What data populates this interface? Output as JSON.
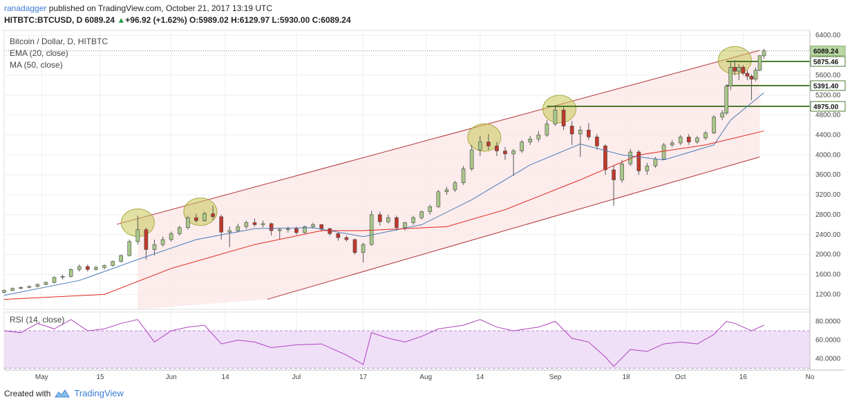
{
  "header": {
    "author": "ranadagger",
    "published": "published on TradingView.com, October 21, 2017 13:19 UTC",
    "symbol": "HITBTC:BTCUSD, D",
    "last": "6089.24",
    "change": "+96.92 (+1.62%)",
    "o_label": "O:",
    "o": "5989.02",
    "h_label": "H:",
    "h": "6129.97",
    "l_label": "L:",
    "l": "5930.00",
    "c_label": "C:",
    "c": "6089.24"
  },
  "footer": {
    "created_with": "Created with",
    "brand": "TradingView"
  },
  "colors": {
    "up": "#a9c88a",
    "down": "#c0392b",
    "ema": "#4a7ab8",
    "ma": "#e0251b",
    "channel": "#b03030",
    "level": "#4a7a2a",
    "rsi": "#b040c0",
    "ellipse": "#c8c85a"
  },
  "chart_data": {
    "type": "candlestick",
    "title": "Bitcoin / Dollar, D, HITBTC",
    "legend": [
      "EMA (20, close)",
      "MA (50, close)"
    ],
    "y_ticks": [
      1200,
      1600,
      2000,
      2400,
      2800,
      3200,
      3600,
      4000,
      4400,
      4800,
      5200,
      5600,
      6000,
      6400
    ],
    "y_tick_labels": [
      "1200.00",
      "1600.00",
      "2000.00",
      "2400.00",
      "2800.00",
      "3200.00",
      "3600.00",
      "4000.00",
      "4400.00",
      "4800.00",
      "5200.00",
      "5600.00",
      "6000.00",
      "6400.00"
    ],
    "ylim": [
      900,
      6500
    ],
    "x_ticks": [
      {
        "label": "May",
        "date": "2017-05-01"
      },
      {
        "label": "15",
        "date": "2017-05-15"
      },
      {
        "label": "Jun",
        "date": "2017-06-01"
      },
      {
        "label": "14",
        "date": "2017-06-14"
      },
      {
        "label": "Jul",
        "date": "2017-07-01"
      },
      {
        "label": "17",
        "date": "2017-07-17"
      },
      {
        "label": "Aug",
        "date": "2017-08-01"
      },
      {
        "label": "14",
        "date": "2017-08-14"
      },
      {
        "label": "Sep",
        "date": "2017-09-01"
      },
      {
        "label": "18",
        "date": "2017-09-18"
      },
      {
        "label": "Oct",
        "date": "2017-10-01"
      },
      {
        "label": "16",
        "date": "2017-10-16"
      },
      {
        "label": "No",
        "date": "2017-11-01"
      }
    ],
    "xlim": [
      "2017-04-22",
      "2017-11-01"
    ],
    "levels": [
      {
        "label": "5875.46",
        "value": 5875.46
      },
      {
        "label": "5391.40",
        "value": 5391.4
      },
      {
        "label": "4975.00",
        "value": 4975.0
      }
    ],
    "last_price": {
      "label": "6089.24",
      "value": 6089.24
    },
    "channel": {
      "upper": [
        {
          "date": "2017-05-24",
          "value": 2720
        },
        {
          "date": "2017-10-20",
          "value": 6100
        }
      ],
      "lower": [
        {
          "date": "2017-06-24",
          "value": 1100
        },
        {
          "date": "2017-10-20",
          "value": 3960
        }
      ]
    },
    "ohlc": [
      [
        "2017-04-22",
        1240,
        1300,
        1220,
        1280
      ],
      [
        "2017-04-24",
        1280,
        1340,
        1260,
        1320
      ],
      [
        "2017-04-26",
        1320,
        1360,
        1300,
        1340
      ],
      [
        "2017-04-28",
        1340,
        1380,
        1320,
        1360
      ],
      [
        "2017-04-30",
        1360,
        1420,
        1340,
        1400
      ],
      [
        "2017-05-02",
        1400,
        1460,
        1380,
        1440
      ],
      [
        "2017-05-04",
        1440,
        1560,
        1420,
        1540
      ],
      [
        "2017-05-06",
        1540,
        1600,
        1500,
        1560
      ],
      [
        "2017-05-08",
        1560,
        1720,
        1540,
        1700
      ],
      [
        "2017-05-10",
        1700,
        1800,
        1660,
        1760
      ],
      [
        "2017-05-12",
        1760,
        1800,
        1660,
        1700
      ],
      [
        "2017-05-14",
        1700,
        1780,
        1680,
        1740
      ],
      [
        "2017-05-16",
        1740,
        1800,
        1700,
        1780
      ],
      [
        "2017-05-18",
        1780,
        1880,
        1760,
        1860
      ],
      [
        "2017-05-20",
        1860,
        2000,
        1840,
        1980
      ],
      [
        "2017-05-22",
        1980,
        2300,
        1960,
        2260
      ],
      [
        "2017-05-24",
        2260,
        2780,
        2200,
        2500
      ],
      [
        "2017-05-26",
        2500,
        2540,
        1900,
        2100
      ],
      [
        "2017-05-28",
        2100,
        2300,
        1980,
        2200
      ],
      [
        "2017-05-30",
        2200,
        2360,
        2160,
        2300
      ],
      [
        "2017-06-01",
        2300,
        2460,
        2260,
        2420
      ],
      [
        "2017-06-03",
        2420,
        2580,
        2380,
        2540
      ],
      [
        "2017-06-05",
        2540,
        2780,
        2500,
        2740
      ],
      [
        "2017-06-07",
        2740,
        2820,
        2640,
        2680
      ],
      [
        "2017-06-09",
        2680,
        2860,
        2660,
        2820
      ],
      [
        "2017-06-11",
        2820,
        2980,
        2700,
        2760
      ],
      [
        "2017-06-13",
        2760,
        2800,
        2300,
        2450
      ],
      [
        "2017-06-15",
        2450,
        2560,
        2150,
        2480
      ],
      [
        "2017-06-17",
        2480,
        2620,
        2440,
        2560
      ],
      [
        "2017-06-19",
        2560,
        2680,
        2520,
        2640
      ],
      [
        "2017-06-21",
        2640,
        2720,
        2560,
        2600
      ],
      [
        "2017-06-23",
        2600,
        2680,
        2540,
        2620
      ],
      [
        "2017-06-25",
        2620,
        2640,
        2380,
        2480
      ],
      [
        "2017-06-27",
        2480,
        2540,
        2300,
        2500
      ],
      [
        "2017-06-29",
        2500,
        2560,
        2440,
        2520
      ],
      [
        "2017-07-01",
        2520,
        2560,
        2400,
        2440
      ],
      [
        "2017-07-03",
        2440,
        2580,
        2420,
        2560
      ],
      [
        "2017-07-05",
        2560,
        2640,
        2520,
        2600
      ],
      [
        "2017-07-07",
        2600,
        2620,
        2460,
        2520
      ],
      [
        "2017-07-09",
        2520,
        2540,
        2380,
        2420
      ],
      [
        "2017-07-11",
        2420,
        2440,
        2280,
        2340
      ],
      [
        "2017-07-13",
        2340,
        2380,
        2260,
        2300
      ],
      [
        "2017-07-15",
        2300,
        2320,
        2000,
        2040
      ],
      [
        "2017-07-17",
        2040,
        2240,
        1840,
        2200
      ],
      [
        "2017-07-19",
        2200,
        2880,
        2180,
        2800
      ],
      [
        "2017-07-21",
        2800,
        2860,
        2580,
        2660
      ],
      [
        "2017-07-23",
        2660,
        2800,
        2620,
        2740
      ],
      [
        "2017-07-25",
        2740,
        2780,
        2480,
        2540
      ],
      [
        "2017-07-27",
        2540,
        2660,
        2480,
        2640
      ],
      [
        "2017-07-29",
        2640,
        2780,
        2600,
        2740
      ],
      [
        "2017-07-31",
        2740,
        2880,
        2700,
        2860
      ],
      [
        "2017-08-02",
        2860,
        3000,
        2800,
        2960
      ],
      [
        "2017-08-04",
        2960,
        3300,
        2940,
        3260
      ],
      [
        "2017-08-06",
        3260,
        3360,
        3200,
        3300
      ],
      [
        "2017-08-08",
        3300,
        3480,
        3260,
        3440
      ],
      [
        "2017-08-10",
        3440,
        3780,
        3400,
        3720
      ],
      [
        "2017-08-12",
        3720,
        4200,
        3680,
        4100
      ],
      [
        "2017-08-14",
        4100,
        4380,
        3980,
        4260
      ],
      [
        "2017-08-16",
        4260,
        4420,
        4100,
        4180
      ],
      [
        "2017-08-18",
        4180,
        4260,
        3980,
        4080
      ],
      [
        "2017-08-20",
        4080,
        4160,
        3900,
        4020
      ],
      [
        "2017-08-22",
        4020,
        4120,
        3580,
        4080
      ],
      [
        "2017-08-24",
        4080,
        4300,
        4040,
        4260
      ],
      [
        "2017-08-26",
        4260,
        4380,
        4200,
        4320
      ],
      [
        "2017-08-28",
        4320,
        4480,
        4260,
        4400
      ],
      [
        "2017-08-30",
        4400,
        4700,
        4360,
        4620
      ],
      [
        "2017-09-01",
        4620,
        4980,
        4580,
        4900
      ],
      [
        "2017-09-03",
        4900,
        4960,
        4500,
        4580
      ],
      [
        "2017-09-05",
        4580,
        4680,
        4200,
        4420
      ],
      [
        "2017-09-07",
        4420,
        4580,
        3960,
        4500
      ],
      [
        "2017-09-09",
        4500,
        4640,
        4300,
        4360
      ],
      [
        "2017-09-11",
        4360,
        4420,
        4100,
        4180
      ],
      [
        "2017-09-13",
        4180,
        4220,
        3600,
        3700
      ],
      [
        "2017-09-15",
        3700,
        3800,
        2980,
        3500
      ],
      [
        "2017-09-17",
        3500,
        3900,
        3440,
        3820
      ],
      [
        "2017-09-19",
        3820,
        4120,
        3780,
        4060
      ],
      [
        "2017-09-21",
        4060,
        4100,
        3600,
        3680
      ],
      [
        "2017-09-23",
        3680,
        3840,
        3600,
        3780
      ],
      [
        "2017-09-25",
        3780,
        3960,
        3740,
        3920
      ],
      [
        "2017-09-27",
        3920,
        4240,
        3900,
        4200
      ],
      [
        "2017-09-29",
        4200,
        4300,
        4160,
        4240
      ],
      [
        "2017-10-01",
        4240,
        4400,
        4200,
        4360
      ],
      [
        "2017-10-03",
        4360,
        4420,
        4200,
        4260
      ],
      [
        "2017-10-05",
        4260,
        4380,
        4220,
        4340
      ],
      [
        "2017-10-07",
        4340,
        4480,
        4300,
        4440
      ],
      [
        "2017-10-09",
        4440,
        4800,
        4420,
        4760
      ],
      [
        "2017-10-11",
        4760,
        4900,
        4700,
        4840
      ],
      [
        "2017-10-12",
        4840,
        5420,
        4800,
        5380
      ],
      [
        "2017-10-13",
        5380,
        5860,
        5300,
        5760
      ],
      [
        "2017-10-14",
        5760,
        5900,
        5600,
        5680
      ],
      [
        "2017-10-15",
        5680,
        5820,
        5500,
        5760
      ],
      [
        "2017-10-16",
        5760,
        5800,
        5600,
        5640
      ],
      [
        "2017-10-17",
        5640,
        5700,
        5500,
        5580
      ],
      [
        "2017-10-18",
        5580,
        5620,
        5100,
        5520
      ],
      [
        "2017-10-19",
        5520,
        5760,
        5480,
        5700
      ],
      [
        "2017-10-20",
        5700,
        6000,
        5680,
        5992
      ],
      [
        "2017-10-21",
        5989.02,
        6129.97,
        5930.0,
        6089.24
      ]
    ],
    "ema20": [
      [
        "2017-04-22",
        1180
      ],
      [
        "2017-05-10",
        1480
      ],
      [
        "2017-05-24",
        1900
      ],
      [
        "2017-06-07",
        2300
      ],
      [
        "2017-06-21",
        2520
      ],
      [
        "2017-07-05",
        2540
      ],
      [
        "2017-07-17",
        2360
      ],
      [
        "2017-07-31",
        2600
      ],
      [
        "2017-08-12",
        3100
      ],
      [
        "2017-08-26",
        3800
      ],
      [
        "2017-09-07",
        4220
      ],
      [
        "2017-09-17",
        4000
      ],
      [
        "2017-09-27",
        3900
      ],
      [
        "2017-10-09",
        4200
      ],
      [
        "2017-10-13",
        4700
      ],
      [
        "2017-10-21",
        5250
      ]
    ],
    "ma50": [
      [
        "2017-04-22",
        1100
      ],
      [
        "2017-05-16",
        1200
      ],
      [
        "2017-06-01",
        1720
      ],
      [
        "2017-06-21",
        2200
      ],
      [
        "2017-07-07",
        2480
      ],
      [
        "2017-07-17",
        2480
      ],
      [
        "2017-08-06",
        2560
      ],
      [
        "2017-08-20",
        2900
      ],
      [
        "2017-09-07",
        3500
      ],
      [
        "2017-09-21",
        4000
      ],
      [
        "2017-10-07",
        4200
      ],
      [
        "2017-10-21",
        4480
      ]
    ],
    "ellipses": [
      {
        "date": "2017-05-24",
        "value": 2640
      },
      {
        "date": "2017-06-08",
        "value": 2860
      },
      {
        "date": "2017-08-15",
        "value": 4350
      },
      {
        "date": "2017-09-02",
        "value": 4920
      },
      {
        "date": "2017-10-14",
        "value": 5900
      }
    ],
    "rsi": {
      "label": "RSI (14, close)",
      "y_ticks": [
        40,
        60,
        80
      ],
      "y_tick_labels": [
        "40.0000",
        "60.0000",
        "80.0000"
      ],
      "ylim": [
        28,
        90
      ],
      "band": [
        30,
        70
      ],
      "values": [
        [
          "2017-04-22",
          70
        ],
        [
          "2017-04-26",
          68
        ],
        [
          "2017-04-30",
          78
        ],
        [
          "2017-05-04",
          72
        ],
        [
          "2017-05-08",
          82
        ],
        [
          "2017-05-12",
          70
        ],
        [
          "2017-05-16",
          72
        ],
        [
          "2017-05-20",
          78
        ],
        [
          "2017-05-24",
          82
        ],
        [
          "2017-05-28",
          58
        ],
        [
          "2017-06-01",
          70
        ],
        [
          "2017-06-05",
          74
        ],
        [
          "2017-06-09",
          76
        ],
        [
          "2017-06-13",
          56
        ],
        [
          "2017-06-17",
          60
        ],
        [
          "2017-06-21",
          58
        ],
        [
          "2017-06-25",
          52
        ],
        [
          "2017-07-01",
          55
        ],
        [
          "2017-07-07",
          56
        ],
        [
          "2017-07-13",
          44
        ],
        [
          "2017-07-17",
          34
        ],
        [
          "2017-07-19",
          68
        ],
        [
          "2017-07-23",
          62
        ],
        [
          "2017-07-27",
          58
        ],
        [
          "2017-07-31",
          64
        ],
        [
          "2017-08-04",
          72
        ],
        [
          "2017-08-10",
          76
        ],
        [
          "2017-08-14",
          82
        ],
        [
          "2017-08-18",
          74
        ],
        [
          "2017-08-22",
          70
        ],
        [
          "2017-08-28",
          74
        ],
        [
          "2017-09-01",
          80
        ],
        [
          "2017-09-05",
          62
        ],
        [
          "2017-09-09",
          58
        ],
        [
          "2017-09-13",
          42
        ],
        [
          "2017-09-15",
          32
        ],
        [
          "2017-09-19",
          50
        ],
        [
          "2017-09-23",
          48
        ],
        [
          "2017-09-27",
          56
        ],
        [
          "2017-10-01",
          58
        ],
        [
          "2017-10-05",
          56
        ],
        [
          "2017-10-09",
          66
        ],
        [
          "2017-10-12",
          80
        ],
        [
          "2017-10-14",
          78
        ],
        [
          "2017-10-16",
          74
        ],
        [
          "2017-10-18",
          70
        ],
        [
          "2017-10-21",
          76
        ]
      ]
    }
  }
}
